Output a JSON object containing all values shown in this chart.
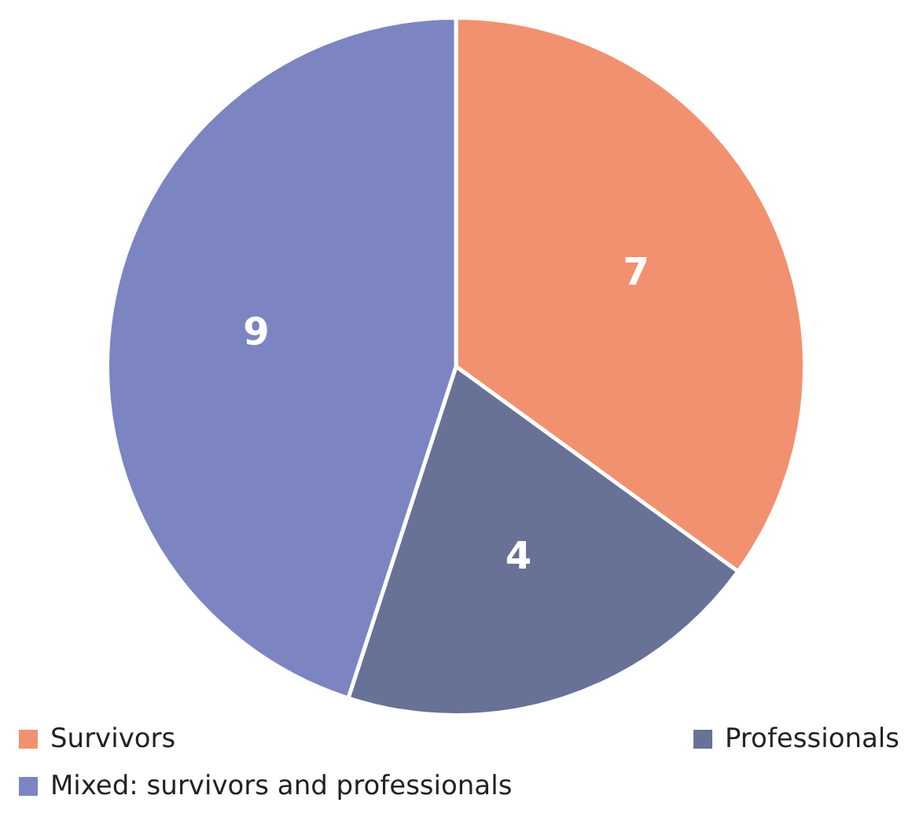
{
  "chart_data": {
    "type": "pie",
    "categories": [
      "Survivors",
      "Professionals",
      "Mixed: survivors and professionals"
    ],
    "values": [
      7,
      4,
      9
    ],
    "colors": [
      "#f2916f",
      "#687296",
      "#7c85c2"
    ],
    "data_labels": true,
    "legend": "bottom"
  }
}
